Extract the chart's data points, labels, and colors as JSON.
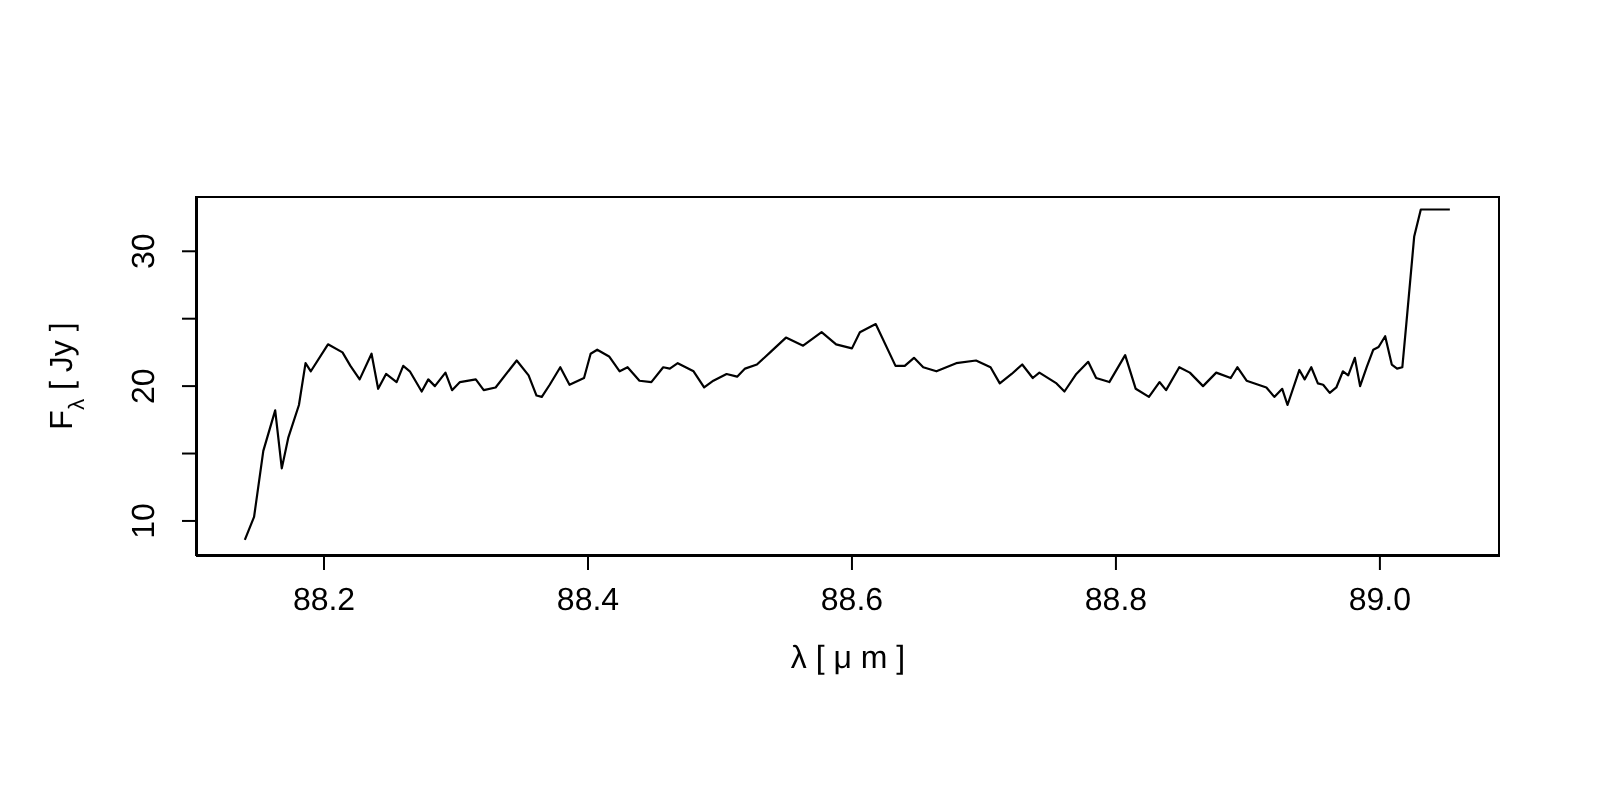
{
  "chart_data": {
    "type": "line",
    "xlabel": "λ [ μ m ]",
    "ylabel": "F$_{λ}$ [ Jy ]",
    "xlim": [
      88.103,
      89.091
    ],
    "ylim": [
      7.4,
      34.1
    ],
    "xticks": [
      88.2,
      88.4,
      88.6,
      88.8,
      {
        "value": 89.0,
        "label": "89.0"
      }
    ],
    "yticks": [
      10,
      {
        "value": 15,
        "label": null
      },
      20,
      {
        "value": 25,
        "label": null
      },
      30
    ],
    "grid": false,
    "legend": false,
    "marker": "none",
    "line_style": "solid",
    "series": [
      {
        "color": "#000000",
        "x": [
          88.14,
          88.147,
          88.154,
          88.163,
          88.168,
          88.173,
          88.181,
          88.186,
          88.19,
          88.203,
          88.214,
          88.22,
          88.227,
          88.236,
          88.241,
          88.247,
          88.255,
          88.26,
          88.265,
          88.274,
          88.279,
          88.284,
          88.292,
          88.297,
          88.303,
          88.315,
          88.321,
          88.33,
          88.346,
          88.355,
          88.361,
          88.365,
          88.371,
          88.379,
          88.386,
          88.397,
          88.402,
          88.407,
          88.416,
          88.424,
          88.43,
          88.439,
          88.448,
          88.457,
          88.462,
          88.468,
          88.48,
          88.488,
          88.495,
          88.505,
          88.513,
          88.519,
          88.528,
          88.538,
          88.55,
          88.563,
          88.577,
          88.588,
          88.6,
          88.606,
          88.618,
          88.633,
          88.64,
          88.647,
          88.654,
          88.664,
          88.679,
          88.694,
          88.705,
          88.712,
          88.721,
          88.729,
          88.737,
          88.742,
          88.755,
          88.761,
          88.77,
          88.779,
          88.785,
          88.795,
          88.807,
          88.815,
          88.825,
          88.833,
          88.838,
          88.848,
          88.856,
          88.866,
          88.876,
          88.887,
          88.892,
          88.899,
          88.914,
          88.92,
          88.926,
          88.93,
          88.939,
          88.943,
          88.948,
          88.953,
          88.957,
          88.962,
          88.967,
          88.972,
          88.976,
          88.981,
          88.985,
          88.99,
          88.995,
          88.999,
          89.004,
          89.009,
          89.013,
          89.017,
          89.02,
          89.026,
          89.031,
          89.053
        ],
        "values": [
          8.6,
          10.3,
          15.2,
          18.2,
          13.9,
          16.2,
          18.6,
          21.7,
          21.1,
          23.1,
          22.5,
          21.5,
          20.5,
          22.4,
          19.8,
          20.9,
          20.3,
          21.5,
          21.1,
          19.6,
          20.5,
          20.0,
          21.0,
          19.7,
          20.3,
          20.5,
          19.7,
          19.9,
          21.9,
          20.8,
          19.3,
          19.2,
          20.1,
          21.4,
          20.1,
          20.6,
          22.4,
          22.7,
          22.2,
          21.1,
          21.4,
          20.4,
          20.3,
          21.4,
          21.3,
          21.7,
          21.1,
          19.9,
          20.4,
          20.9,
          20.7,
          21.3,
          21.6,
          22.5,
          23.6,
          23.0,
          24.0,
          23.1,
          22.8,
          24.0,
          24.6,
          21.5,
          21.5,
          22.1,
          21.4,
          21.1,
          21.7,
          21.9,
          21.4,
          20.2,
          20.9,
          21.6,
          20.6,
          21.0,
          20.2,
          19.6,
          20.9,
          21.8,
          20.6,
          20.3,
          22.3,
          19.8,
          19.2,
          20.3,
          19.7,
          21.4,
          21.0,
          20.0,
          21.0,
          20.6,
          21.4,
          20.4,
          19.9,
          19.2,
          19.8,
          18.6,
          21.2,
          20.5,
          21.4,
          20.2,
          20.1,
          19.5,
          19.9,
          21.1,
          20.8,
          22.1,
          20.0,
          21.4,
          22.7,
          22.9,
          23.7,
          21.6,
          21.3,
          21.4,
          24.6,
          31.1,
          33.1,
          33.1
        ]
      }
    ]
  }
}
